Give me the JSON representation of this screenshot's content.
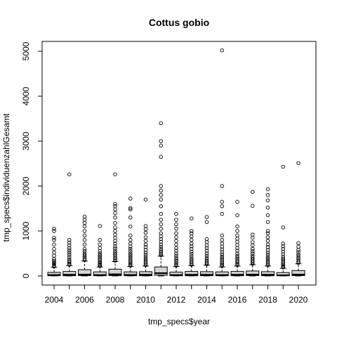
{
  "chart_data": {
    "type": "boxplot",
    "title": "Cottus gobio",
    "xlabel": "tmp_specs$year",
    "ylabel": "tmp_specs$individuenzahlGesamt",
    "ylim": [
      -80,
      5150
    ],
    "y_ticks": [
      0,
      1000,
      2000,
      3000,
      4000,
      5000
    ],
    "x_tick_labels": [
      "2004",
      "2006",
      "2008",
      "2010",
      "2012",
      "2014",
      "2016",
      "2018",
      "2020"
    ],
    "grid": false,
    "legend": "none",
    "box_fill": "#d3d3d3",
    "categories": [
      "2004",
      "2005",
      "2006",
      "2007",
      "2008",
      "2009",
      "2010",
      "2011",
      "2012",
      "2013",
      "2014",
      "2015",
      "2016",
      "2017",
      "2018",
      "2019",
      "2020"
    ],
    "boxes": [
      {
        "year": "2004",
        "low": 0,
        "q1": 5,
        "median": 20,
        "q3": 80,
        "high": 190,
        "outliers": [
          210,
          230,
          260,
          290,
          310,
          340,
          380,
          450,
          520,
          600,
          700,
          800,
          850,
          1000,
          1050
        ]
      },
      {
        "year": "2005",
        "low": 0,
        "q1": 5,
        "median": 25,
        "q3": 100,
        "high": 230,
        "outliers": [
          250,
          270,
          300,
          330,
          370,
          420,
          470,
          520,
          570,
          620,
          680,
          740,
          800,
          2260
        ]
      },
      {
        "year": "2006",
        "low": 0,
        "q1": 8,
        "median": 30,
        "q3": 140,
        "high": 330,
        "outliers": [
          350,
          380,
          420,
          460,
          500,
          550,
          600,
          700,
          800,
          900,
          1000,
          1100,
          1180,
          1250,
          1320
        ]
      },
      {
        "year": "2007",
        "low": 0,
        "q1": 5,
        "median": 20,
        "q3": 90,
        "high": 200,
        "outliers": [
          220,
          240,
          260,
          290,
          320,
          350,
          380,
          420,
          460,
          500,
          550,
          620,
          700,
          800,
          1110
        ]
      },
      {
        "year": "2008",
        "low": 0,
        "q1": 8,
        "median": 35,
        "q3": 150,
        "high": 320,
        "outliers": [
          340,
          370,
          400,
          440,
          480,
          520,
          560,
          610,
          660,
          720,
          780,
          850,
          920,
          1000,
          1080,
          1180,
          1300,
          1400,
          1480,
          1550,
          1600,
          2260
        ]
      },
      {
        "year": "2009",
        "low": 0,
        "q1": 5,
        "median": 22,
        "q3": 90,
        "high": 210,
        "outliers": [
          230,
          250,
          280,
          310,
          340,
          380,
          420,
          460,
          500,
          550,
          600,
          650,
          720,
          800,
          900,
          1100,
          1300,
          1480,
          1510,
          1720
        ]
      },
      {
        "year": "2010",
        "low": 0,
        "q1": 5,
        "median": 25,
        "q3": 95,
        "high": 220,
        "outliers": [
          240,
          270,
          300,
          340,
          380,
          420,
          470,
          520,
          580,
          640,
          700,
          780,
          860,
          960,
          1040,
          1110,
          1700
        ]
      },
      {
        "year": "2011",
        "low": 0,
        "q1": 15,
        "median": 60,
        "q3": 200,
        "high": 440,
        "outliers": [
          460,
          490,
          520,
          560,
          600,
          650,
          700,
          760,
          820,
          880,
          950,
          1050,
          1150,
          1250,
          1380,
          1550,
          1700,
          1800,
          1900,
          2000,
          2650,
          2900,
          3000,
          3400
        ]
      },
      {
        "year": "2012",
        "low": 0,
        "q1": 5,
        "median": 20,
        "q3": 85,
        "high": 210,
        "outliers": [
          230,
          260,
          290,
          320,
          360,
          400,
          450,
          500,
          560,
          620,
          700,
          780,
          860,
          950,
          1050,
          1150,
          1250,
          1380
        ]
      },
      {
        "year": "2013",
        "low": 0,
        "q1": 5,
        "median": 25,
        "q3": 100,
        "high": 230,
        "outliers": [
          250,
          280,
          310,
          350,
          390,
          440,
          490,
          540,
          600,
          660,
          720,
          800,
          880,
          950,
          1000,
          1280
        ]
      },
      {
        "year": "2014",
        "low": 0,
        "q1": 5,
        "median": 25,
        "q3": 95,
        "high": 240,
        "outliers": [
          260,
          290,
          320,
          360,
          400,
          450,
          500,
          560,
          620,
          680,
          750,
          820,
          1200,
          1310
        ]
      },
      {
        "year": "2015",
        "low": 0,
        "q1": 5,
        "median": 20,
        "q3": 90,
        "high": 200,
        "outliers": [
          220,
          250,
          280,
          310,
          350,
          390,
          430,
          480,
          530,
          590,
          650,
          720,
          800,
          900,
          1380,
          1550,
          1650,
          2000,
          5020
        ]
      },
      {
        "year": "2016",
        "low": 0,
        "q1": 5,
        "median": 25,
        "q3": 100,
        "high": 220,
        "outliers": [
          240,
          270,
          300,
          330,
          370,
          410,
          450,
          500,
          560,
          620,
          690,
          760,
          830,
          900,
          1000,
          1100,
          1350,
          1650
        ]
      },
      {
        "year": "2017",
        "low": 0,
        "q1": 8,
        "median": 30,
        "q3": 110,
        "high": 250,
        "outliers": [
          270,
          300,
          330,
          370,
          410,
          450,
          500,
          550,
          600,
          680,
          750,
          850,
          920,
          1560,
          1870
        ]
      },
      {
        "year": "2018",
        "low": 0,
        "q1": 5,
        "median": 25,
        "q3": 95,
        "high": 220,
        "outliers": [
          240,
          270,
          300,
          340,
          380,
          420,
          470,
          520,
          580,
          640,
          700,
          780,
          860,
          950,
          1000,
          1200,
          1350,
          1520,
          1680,
          1800,
          1930
        ]
      },
      {
        "year": "2019",
        "low": 0,
        "q1": 5,
        "median": 15,
        "q3": 75,
        "high": 170,
        "outliers": [
          190,
          210,
          240,
          270,
          300,
          340,
          380,
          420,
          480,
          540,
          600,
          660,
          720,
          1080,
          2430
        ]
      },
      {
        "year": "2020",
        "low": 0,
        "q1": 8,
        "median": 30,
        "q3": 120,
        "high": 270,
        "outliers": [
          290,
          320,
          360,
          400,
          440,
          480,
          530,
          580,
          650,
          730,
          2510
        ]
      }
    ]
  }
}
